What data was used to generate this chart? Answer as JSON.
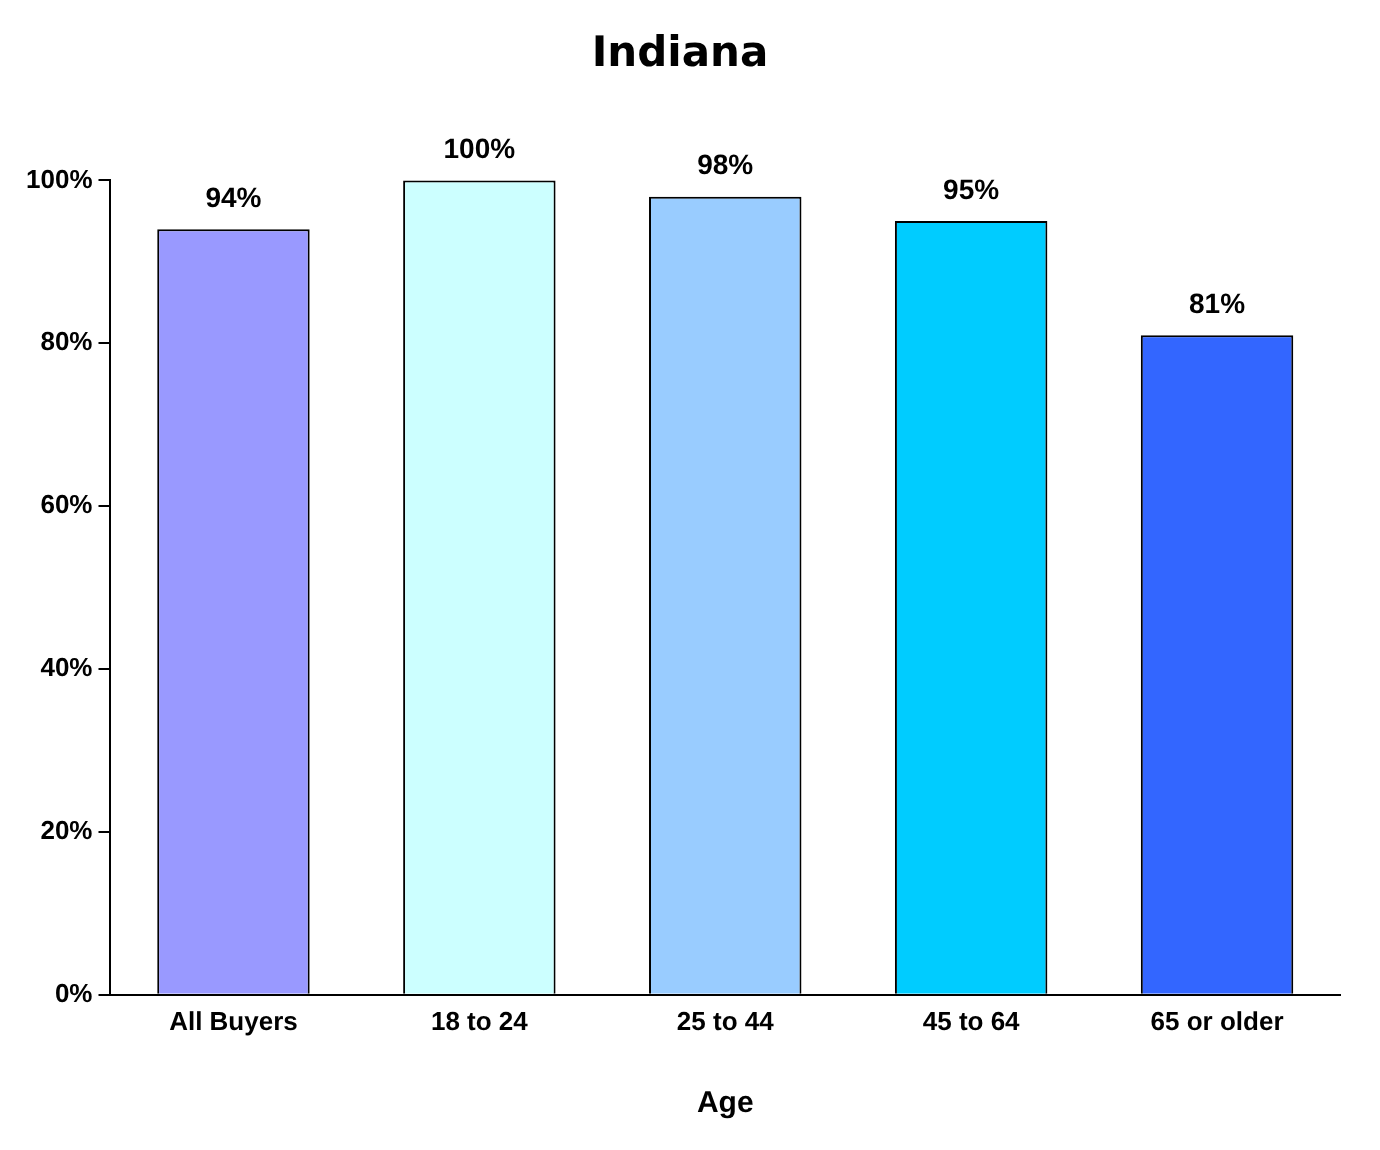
{
  "chart_data": {
    "type": "bar",
    "title": "Indiana",
    "xlabel": "Age",
    "categories": [
      "All Buyers",
      "18 to 24",
      "25 to 44",
      "45 to 64",
      "65 or older"
    ],
    "values": [
      94,
      100,
      98,
      95,
      81
    ],
    "colors": [
      "#9999ff",
      "#ccffff",
      "#99ccff",
      "#00ccff",
      "#3366ff"
    ],
    "value_labels": [
      "94%",
      "100%",
      "98%",
      "95%",
      "81%"
    ],
    "ylim": [
      0,
      100
    ],
    "yticks": [
      {
        "value": 0,
        "label": "0%"
      },
      {
        "value": 20,
        "label": "20%"
      },
      {
        "value": 40,
        "label": "40%"
      },
      {
        "value": 60,
        "label": "60%"
      },
      {
        "value": 80,
        "label": "80%"
      },
      {
        "value": 100,
        "label": "100%"
      }
    ],
    "grid": false,
    "legend": false
  }
}
